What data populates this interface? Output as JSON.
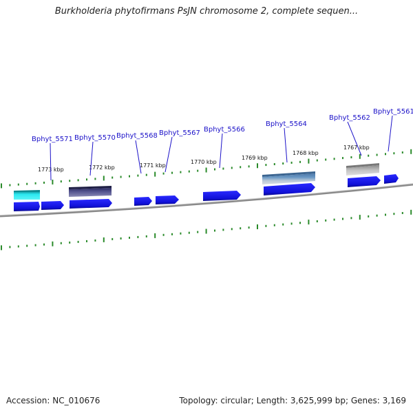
{
  "title": "Burkholderia phytofirmans PsJN chromosome 2, complete sequen...",
  "footer": {
    "accession": "Accession: NC_010676",
    "summary": "Topology: circular; Length: 3,625,999 bp; Genes: 3,169"
  },
  "scale_labels": [
    "1773 kbp",
    "1772 kbp",
    "1771 kbp",
    "1770 kbp",
    "1769 kbp",
    "1768 kbp",
    "1767 kbp"
  ],
  "gene_labels": [
    "Bphyt_5571",
    "Bphyt_5570",
    "Bphyt_5568",
    "Bphyt_5567",
    "Bphyt_5566",
    "Bphyt_5564",
    "Bphyt_5562",
    "Bphyt_5561"
  ],
  "colors": {
    "gene_label": "#1a10c8",
    "gene_arrow": "#1414e6",
    "tick": "#2a8a2a",
    "backbone": "#8a8a8a",
    "feature_cyan": "#22e0e8",
    "feature_slate": "#4a4a8a",
    "feature_steel": "#6a8ab0",
    "feature_gray": "#b8b8b8"
  }
}
